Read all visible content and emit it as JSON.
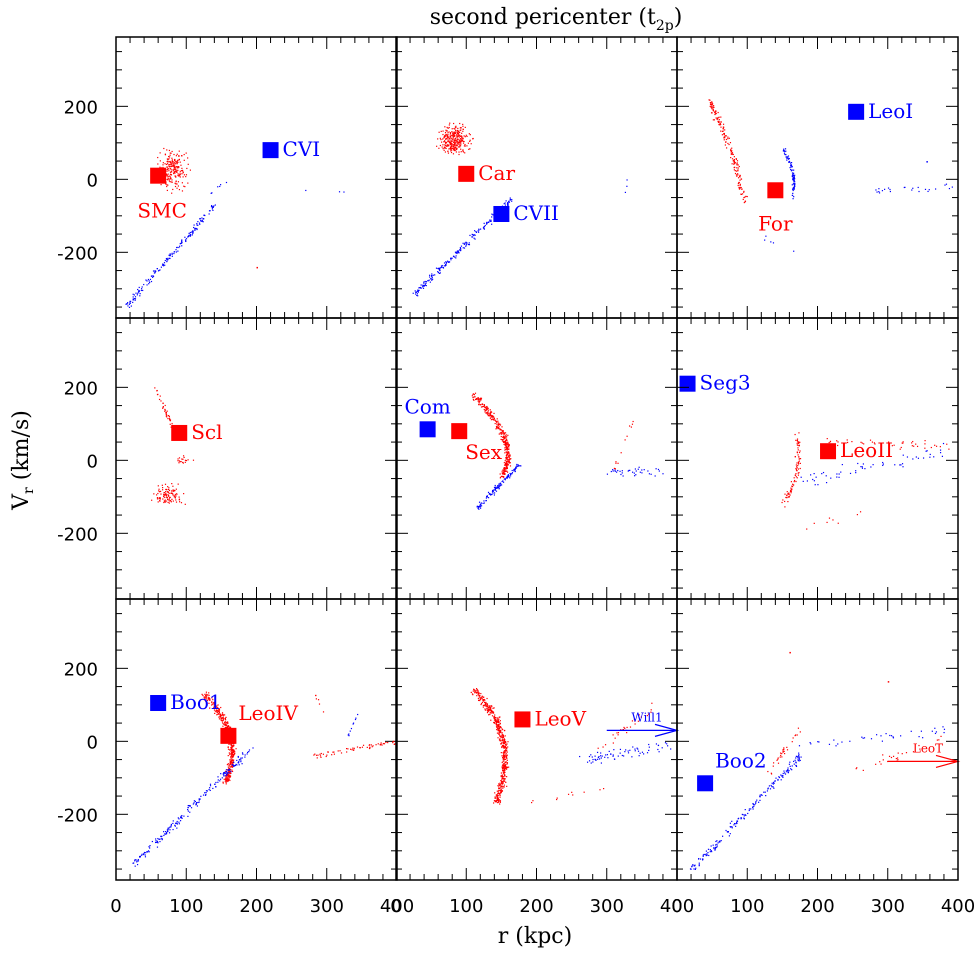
{
  "title": {
    "main": "second pericenter (t",
    "sub": "2p",
    "close": ")"
  },
  "axes": {
    "xlabel": "r (kpc)",
    "ylabel_main": "V",
    "ylabel_sub": "r",
    "ylabel_rest": " (km/s)",
    "xlim": [
      0,
      400
    ],
    "ylim": [
      -380,
      390
    ],
    "xticks": [
      "0",
      "100",
      "200",
      "300",
      "400"
    ],
    "yticks": [
      "200",
      "0",
      "-200"
    ],
    "ytick_values": [
      200,
      0,
      -200
    ]
  },
  "colors": {
    "red": "#ff0000",
    "blue": "#0000ff",
    "frame": "#000000"
  },
  "chart_data": [
    {
      "type": "scatter",
      "panel": 0,
      "markers": [
        {
          "label": "SMC",
          "x": 60,
          "y": 10,
          "color": "red",
          "label_pos": "below-left"
        },
        {
          "label": "CVI",
          "x": 220,
          "y": 80,
          "color": "blue",
          "label_pos": "right"
        }
      ],
      "clouds": [
        {
          "color": "red",
          "shape": "blob",
          "cx": 80,
          "cy": 30,
          "rx": 28,
          "ry": 70,
          "n": 220
        },
        {
          "color": "blue",
          "shape": "line",
          "x0": 15,
          "y0": -345,
          "x1": 140,
          "y1": -70,
          "spread": 10,
          "n": 170
        },
        {
          "color": "blue",
          "shape": "line",
          "x0": 130,
          "y0": -40,
          "x1": 160,
          "y1": 0,
          "spread": 6,
          "n": 6
        },
        {
          "color": "blue",
          "shape": "line",
          "x0": 215,
          "y0": -25,
          "x1": 340,
          "y1": -35,
          "spread": 3,
          "n": 3
        }
      ],
      "single_points": [
        {
          "x": 200,
          "y": -240,
          "color": "red"
        }
      ]
    },
    {
      "type": "scatter",
      "panel": 1,
      "markers": [
        {
          "label": "Car",
          "x": 100,
          "y": 15,
          "color": "red",
          "label_pos": "right"
        },
        {
          "label": "CVII",
          "x": 150,
          "y": -95,
          "color": "blue",
          "label_pos": "right"
        }
      ],
      "clouds": [
        {
          "color": "red",
          "shape": "blob",
          "cx": 82,
          "cy": 110,
          "rx": 30,
          "ry": 55,
          "n": 300
        },
        {
          "color": "blue",
          "shape": "line",
          "x0": 25,
          "y0": -315,
          "x1": 165,
          "y1": -50,
          "spread": 10,
          "n": 200
        },
        {
          "color": "blue",
          "shape": "line",
          "x0": 325,
          "y0": -40,
          "x1": 335,
          "y1": 60,
          "spread": 2,
          "n": 3
        }
      ],
      "single_points": []
    },
    {
      "type": "scatter",
      "panel": 2,
      "markers": [
        {
          "label": "LeoI",
          "x": 255,
          "y": 185,
          "color": "blue",
          "label_pos": "right"
        },
        {
          "label": "For",
          "x": 140,
          "y": -30,
          "color": "red",
          "label_pos": "below"
        }
      ],
      "clouds": [
        {
          "color": "red",
          "shape": "arc",
          "cx": 80,
          "cy": 95,
          "x0": 45,
          "y0": 215,
          "x1": 95,
          "y1": -60,
          "spread": 10,
          "n": 180
        },
        {
          "color": "blue",
          "shape": "arc",
          "cx": 170,
          "cy": 20,
          "x0": 150,
          "y0": 85,
          "x1": 165,
          "y1": -50,
          "spread": 6,
          "n": 90
        },
        {
          "color": "blue",
          "shape": "line",
          "x0": 280,
          "y0": -30,
          "x1": 390,
          "y1": -20,
          "spread": 12,
          "n": 24
        },
        {
          "color": "blue",
          "shape": "line",
          "x0": 120,
          "y0": -160,
          "x1": 180,
          "y1": -200,
          "spread": 15,
          "n": 5
        }
      ],
      "single_points": [
        {
          "x": 355,
          "y": 50,
          "color": "blue"
        }
      ]
    },
    {
      "type": "scatter",
      "panel": 3,
      "markers": [
        {
          "label": "Scl",
          "x": 90,
          "y": 75,
          "color": "red",
          "label_pos": "right"
        }
      ],
      "clouds": [
        {
          "color": "red",
          "shape": "line",
          "x0": 55,
          "y0": 200,
          "x1": 85,
          "y1": 70,
          "spread": 6,
          "n": 40
        },
        {
          "color": "red",
          "shape": "blob",
          "cx": 75,
          "cy": -95,
          "rx": 28,
          "ry": 40,
          "n": 110
        },
        {
          "color": "red",
          "shape": "blob",
          "cx": 95,
          "cy": 0,
          "rx": 18,
          "ry": 18,
          "n": 18
        }
      ],
      "single_points": []
    },
    {
      "type": "scatter",
      "panel": 4,
      "markers": [
        {
          "label": "Com",
          "x": 45,
          "y": 85,
          "color": "blue",
          "label_pos": "above"
        },
        {
          "label": "Sex",
          "x": 90,
          "y": 80,
          "color": "red",
          "label_pos": "below-right"
        },
        {
          "label": "Seg3",
          "x": 415,
          "y": 210,
          "color": "blue",
          "label_pos": "right"
        }
      ],
      "clouds": [
        {
          "color": "red",
          "shape": "arc",
          "cx": 180,
          "cy": 40,
          "x0": 110,
          "y0": 180,
          "x1": 150,
          "y1": -40,
          "spread": 10,
          "n": 360
        },
        {
          "color": "blue",
          "shape": "line",
          "x0": 115,
          "y0": -130,
          "x1": 175,
          "y1": -10,
          "spread": 8,
          "n": 120
        },
        {
          "color": "blue",
          "shape": "line",
          "x0": 300,
          "y0": -30,
          "x1": 375,
          "y1": -30,
          "spread": 18,
          "n": 36
        },
        {
          "color": "red",
          "shape": "line",
          "x0": 305,
          "y0": -40,
          "x1": 340,
          "y1": 120,
          "spread": 8,
          "n": 12
        }
      ],
      "single_points": []
    },
    {
      "type": "scatter",
      "panel": 5,
      "markers": [
        {
          "label": "LeoII",
          "x": 215,
          "y": 25,
          "color": "red",
          "label_pos": "right"
        }
      ],
      "clouds": [
        {
          "color": "red",
          "shape": "arc",
          "cx": 180,
          "cy": -25,
          "x0": 170,
          "y0": 70,
          "x1": 150,
          "y1": -120,
          "spread": 10,
          "n": 90
        },
        {
          "color": "red",
          "shape": "line",
          "x0": 210,
          "y0": 50,
          "x1": 390,
          "y1": 40,
          "spread": 20,
          "n": 40
        },
        {
          "color": "blue",
          "shape": "line",
          "x0": 175,
          "y0": -60,
          "x1": 380,
          "y1": 30,
          "spread": 25,
          "n": 55
        },
        {
          "color": "red",
          "shape": "line",
          "x0": 180,
          "y0": -180,
          "x1": 260,
          "y1": -150,
          "spread": 15,
          "n": 8
        }
      ],
      "single_points": []
    },
    {
      "type": "scatter",
      "panel": 6,
      "markers": [
        {
          "label": "Boo1",
          "x": 60,
          "y": 105,
          "color": "blue",
          "label_pos": "right"
        },
        {
          "label": "LeoIV",
          "x": 160,
          "y": 15,
          "color": "red",
          "label_pos": "above-right"
        }
      ],
      "clouds": [
        {
          "color": "red",
          "shape": "arc",
          "cx": 185,
          "cy": 10,
          "x0": 125,
          "y0": 130,
          "x1": 155,
          "y1": -110,
          "spread": 11,
          "n": 420
        },
        {
          "color": "blue",
          "shape": "line",
          "x0": 25,
          "y0": -335,
          "x1": 190,
          "y1": -20,
          "spread": 12,
          "n": 200
        },
        {
          "color": "red",
          "shape": "line",
          "x0": 280,
          "y0": -40,
          "x1": 395,
          "y1": 0,
          "spread": 10,
          "n": 60
        },
        {
          "color": "blue",
          "shape": "line",
          "x0": 330,
          "y0": 20,
          "x1": 345,
          "y1": 80,
          "spread": 4,
          "n": 10
        },
        {
          "color": "red",
          "shape": "line",
          "x0": 280,
          "y0": 140,
          "x1": 295,
          "y1": 80,
          "spread": 4,
          "n": 6
        }
      ],
      "single_points": []
    },
    {
      "type": "scatter",
      "panel": 7,
      "markers": [
        {
          "label": "LeoV",
          "x": 180,
          "y": 60,
          "color": "red",
          "label_pos": "right"
        }
      ],
      "clouds": [
        {
          "color": "red",
          "shape": "arc",
          "cx": 180,
          "cy": 10,
          "x0": 110,
          "y0": 140,
          "x1": 140,
          "y1": -170,
          "spread": 12,
          "n": 520
        },
        {
          "color": "blue",
          "shape": "line",
          "x0": 270,
          "y0": -50,
          "x1": 390,
          "y1": -10,
          "spread": 22,
          "n": 70
        },
        {
          "color": "red",
          "shape": "line",
          "x0": 290,
          "y0": -20,
          "x1": 370,
          "y1": 100,
          "spread": 18,
          "n": 30
        },
        {
          "color": "red",
          "shape": "line",
          "x0": 170,
          "y0": -170,
          "x1": 300,
          "y1": -130,
          "spread": 15,
          "n": 10
        }
      ],
      "single_points": [],
      "arrow": {
        "label": "Will1",
        "x0": 300,
        "x1": 400,
        "y": 30,
        "color": "blue"
      }
    },
    {
      "type": "scatter",
      "panel": 8,
      "markers": [
        {
          "label": "Boo2",
          "x": 40,
          "y": -115,
          "color": "blue",
          "label_pos": "above-right"
        }
      ],
      "clouds": [
        {
          "color": "blue",
          "shape": "line",
          "x0": 20,
          "y0": -350,
          "x1": 175,
          "y1": -40,
          "spread": 12,
          "n": 190
        },
        {
          "color": "red",
          "shape": "line",
          "x0": 130,
          "y0": -90,
          "x1": 175,
          "y1": 40,
          "spread": 12,
          "n": 30
        },
        {
          "color": "blue",
          "shape": "line",
          "x0": 170,
          "y0": -10,
          "x1": 385,
          "y1": 30,
          "spread": 18,
          "n": 35
        },
        {
          "color": "red",
          "shape": "line",
          "x0": 240,
          "y0": -90,
          "x1": 380,
          "y1": 10,
          "spread": 20,
          "n": 25
        }
      ],
      "single_points": [
        {
          "x": 160,
          "y": 245,
          "color": "red"
        },
        {
          "x": 300,
          "y": 165,
          "color": "red"
        }
      ],
      "arrow": {
        "label": "LeoT",
        "x0": 300,
        "x1": 400,
        "y": -55,
        "color": "red"
      }
    }
  ]
}
